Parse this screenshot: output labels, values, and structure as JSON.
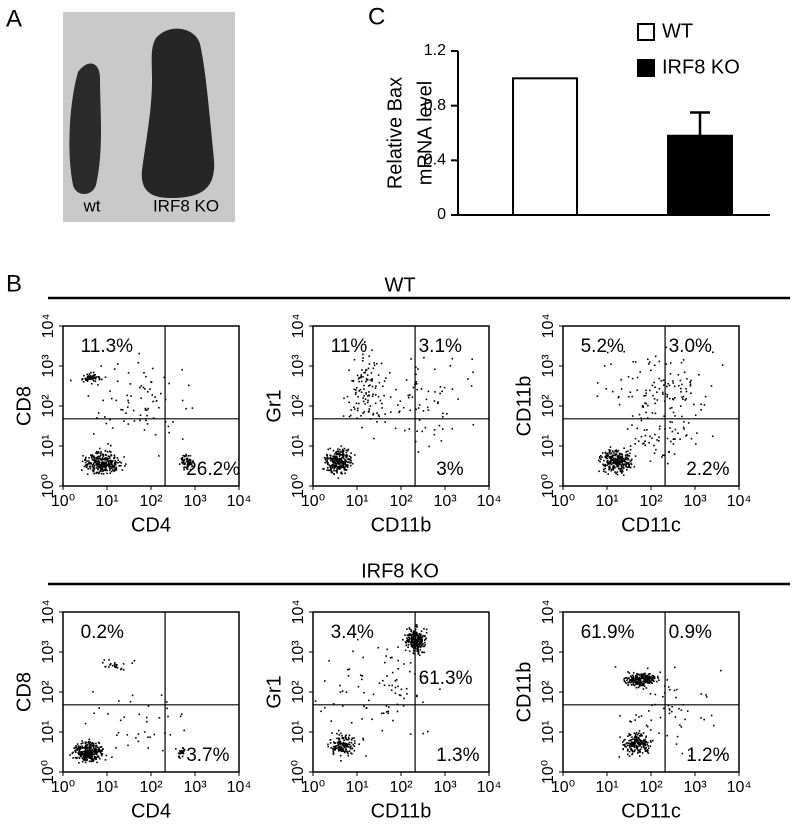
{
  "panel_labels": [
    "A",
    "B",
    "C"
  ],
  "photo": {
    "labels": [
      "wt",
      "IRF8 KO"
    ]
  },
  "chart_data": {
    "type": "bar",
    "y_label": [
      "Relative Bax",
      "mRNA level"
    ],
    "series": [
      {
        "name": "WT",
        "color": "#ffffff",
        "values": [
          1.0
        ]
      },
      {
        "name": "IRF8 KO",
        "color": "#000000",
        "values": [
          0.58
        ],
        "errors": [
          0.17
        ]
      }
    ],
    "ylim": [
      0,
      1.2
    ],
    "yticks": [
      0,
      0.4,
      0.8,
      1.2
    ]
  },
  "flow": {
    "scale": "log",
    "lim": [
      1,
      10000
    ],
    "ticks": [
      {
        "value": 1,
        "label": "10⁰"
      },
      {
        "value": 10,
        "label": "10¹"
      },
      {
        "value": 100,
        "label": "10²"
      },
      {
        "value": 1000,
        "label": "10³"
      },
      {
        "value": 10000,
        "label": "10⁴"
      }
    ],
    "rows": [
      {
        "title": "WT",
        "plots": [
          {
            "x_label": "CD4",
            "y_label": "CD8",
            "quadrants": {
              "top_left": "11.3%",
              "bottom_right": "26.2%"
            }
          },
          {
            "x_label": "CD11b",
            "y_label": "Gr1",
            "quadrants": {
              "top_left": "11%",
              "top_right": "3.1%",
              "bottom_right": "3%"
            }
          },
          {
            "x_label": "CD11c",
            "y_label": "CD11b",
            "quadrants": {
              "top_left": "5.2%",
              "top_right": "3.0%",
              "bottom_right": "2.2%"
            }
          }
        ]
      },
      {
        "title": "IRF8 KO",
        "plots": [
          {
            "x_label": "CD4",
            "y_label": "CD8",
            "quadrants": {
              "top_left": "0.2%",
              "bottom_right": "3.7%"
            }
          },
          {
            "x_label": "CD11b",
            "y_label": "Gr1",
            "quadrants": {
              "top_left": "3.4%",
              "top_right": "61.3%",
              "bottom_right": "1.3%"
            }
          },
          {
            "x_label": "CD11c",
            "y_label": "CD11b",
            "quadrants": {
              "top_left": "61.9%",
              "top_right": "0.9%",
              "bottom_right": "1.2%"
            }
          }
        ]
      }
    ]
  }
}
